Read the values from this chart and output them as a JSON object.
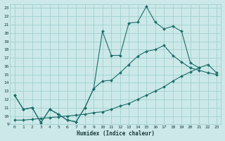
{
  "xlabel": "Humidex (Indice chaleur)",
  "bg_color": "#cce8e8",
  "line_color": "#1a6e6a",
  "grid_color": "#99cccc",
  "xlim": [
    -0.5,
    23.5
  ],
  "ylim": [
    9,
    23.5
  ],
  "xticks": [
    0,
    1,
    2,
    3,
    4,
    5,
    6,
    7,
    8,
    9,
    10,
    11,
    12,
    13,
    14,
    15,
    16,
    17,
    18,
    19,
    20,
    21,
    22,
    23
  ],
  "yticks": [
    9,
    10,
    11,
    12,
    13,
    14,
    15,
    16,
    17,
    18,
    19,
    20,
    21,
    22,
    23
  ],
  "line1_x": [
    0,
    1,
    2,
    3,
    4,
    5,
    6,
    7,
    8,
    9,
    10,
    11,
    12,
    13,
    14,
    15,
    16,
    17,
    18,
    19,
    20,
    21
  ],
  "line1_y": [
    12.5,
    10.8,
    11.0,
    9.2,
    10.8,
    10.2,
    9.5,
    9.3,
    11.0,
    13.3,
    20.2,
    17.3,
    17.3,
    21.2,
    21.3,
    23.2,
    21.3,
    20.5,
    20.8,
    20.2,
    16.4,
    15.8
  ],
  "line2_x": [
    0,
    1,
    2,
    3,
    4,
    5,
    6,
    7,
    8,
    9,
    10,
    11,
    12,
    13,
    14,
    15,
    16,
    17,
    18,
    19,
    20,
    21,
    22,
    23
  ],
  "line2_y": [
    12.5,
    10.8,
    11.0,
    9.2,
    10.8,
    10.2,
    9.5,
    9.3,
    11.0,
    13.3,
    14.2,
    14.3,
    15.2,
    16.2,
    17.2,
    17.8,
    18.0,
    18.5,
    17.3,
    16.5,
    15.8,
    15.5,
    15.2,
    15.0
  ],
  "line3_x": [
    0,
    1,
    2,
    3,
    4,
    5,
    6,
    7,
    8,
    9,
    10,
    11,
    12,
    13,
    14,
    15,
    16,
    17,
    18,
    19,
    20,
    21,
    22,
    23
  ],
  "line3_y": [
    9.5,
    9.5,
    9.6,
    9.7,
    9.8,
    9.9,
    10.0,
    10.1,
    10.2,
    10.4,
    10.5,
    10.8,
    11.2,
    11.5,
    12.0,
    12.5,
    13.0,
    13.5,
    14.2,
    14.8,
    15.3,
    15.8,
    16.2,
    15.2
  ]
}
